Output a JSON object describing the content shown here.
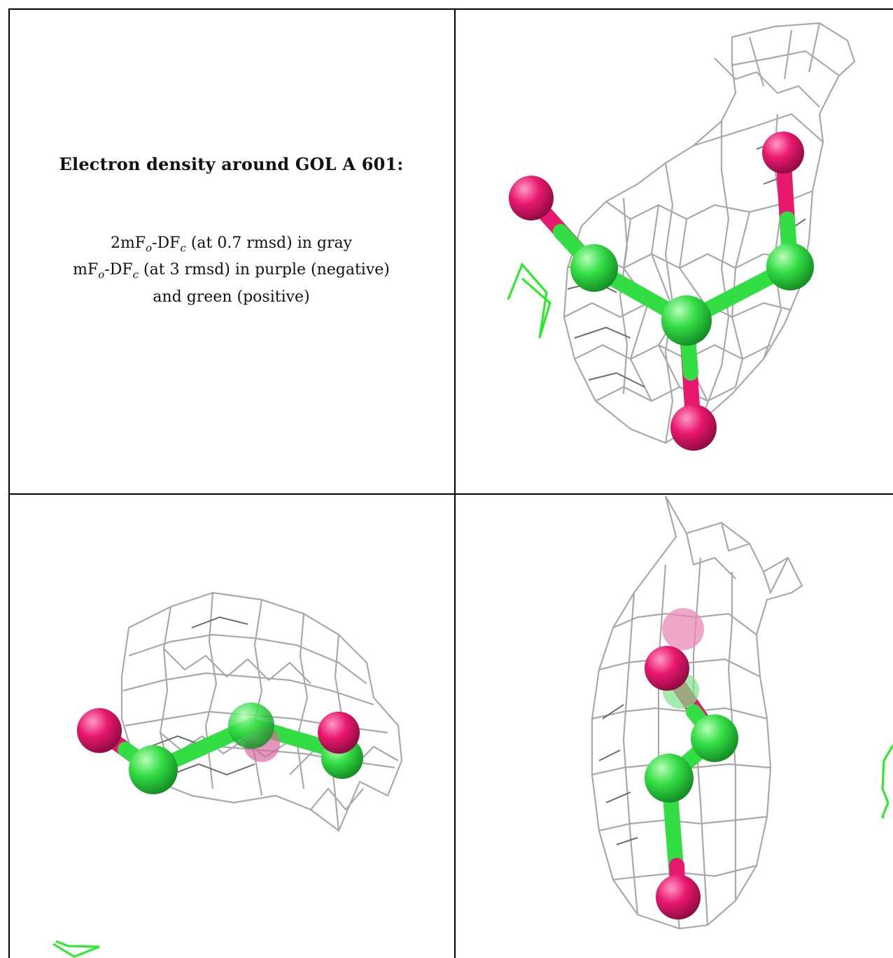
{
  "caption": {
    "title": "Electron density around GOL A 601:",
    "line1_prefix": "2mF",
    "line1_sub_o": "o",
    "line1_mid": "-DF",
    "line1_sub_c": "c",
    "line1_suffix": " (at 0.7 rmsd) in gray",
    "line2_prefix": "mF",
    "line2_sub_o": "o",
    "line2_mid": "-DF",
    "line2_sub_c": "c",
    "line2_suffix": " (at 3 rmsd) in purple (negative)",
    "line3": "and green (positive)"
  },
  "colors": {
    "mesh_gray": "#a9a9a9",
    "mesh_dark": "#6d6d6d",
    "carbon_green": "#33dd44",
    "oxygen_pink": "#e8186e",
    "positive_density_green": "#22ee22",
    "border": "#000000"
  },
  "panels": [
    {
      "name": "view-1",
      "molecule": "glycerol"
    },
    {
      "name": "view-2",
      "molecule": "glycerol"
    },
    {
      "name": "view-3",
      "molecule": "glycerol"
    }
  ]
}
